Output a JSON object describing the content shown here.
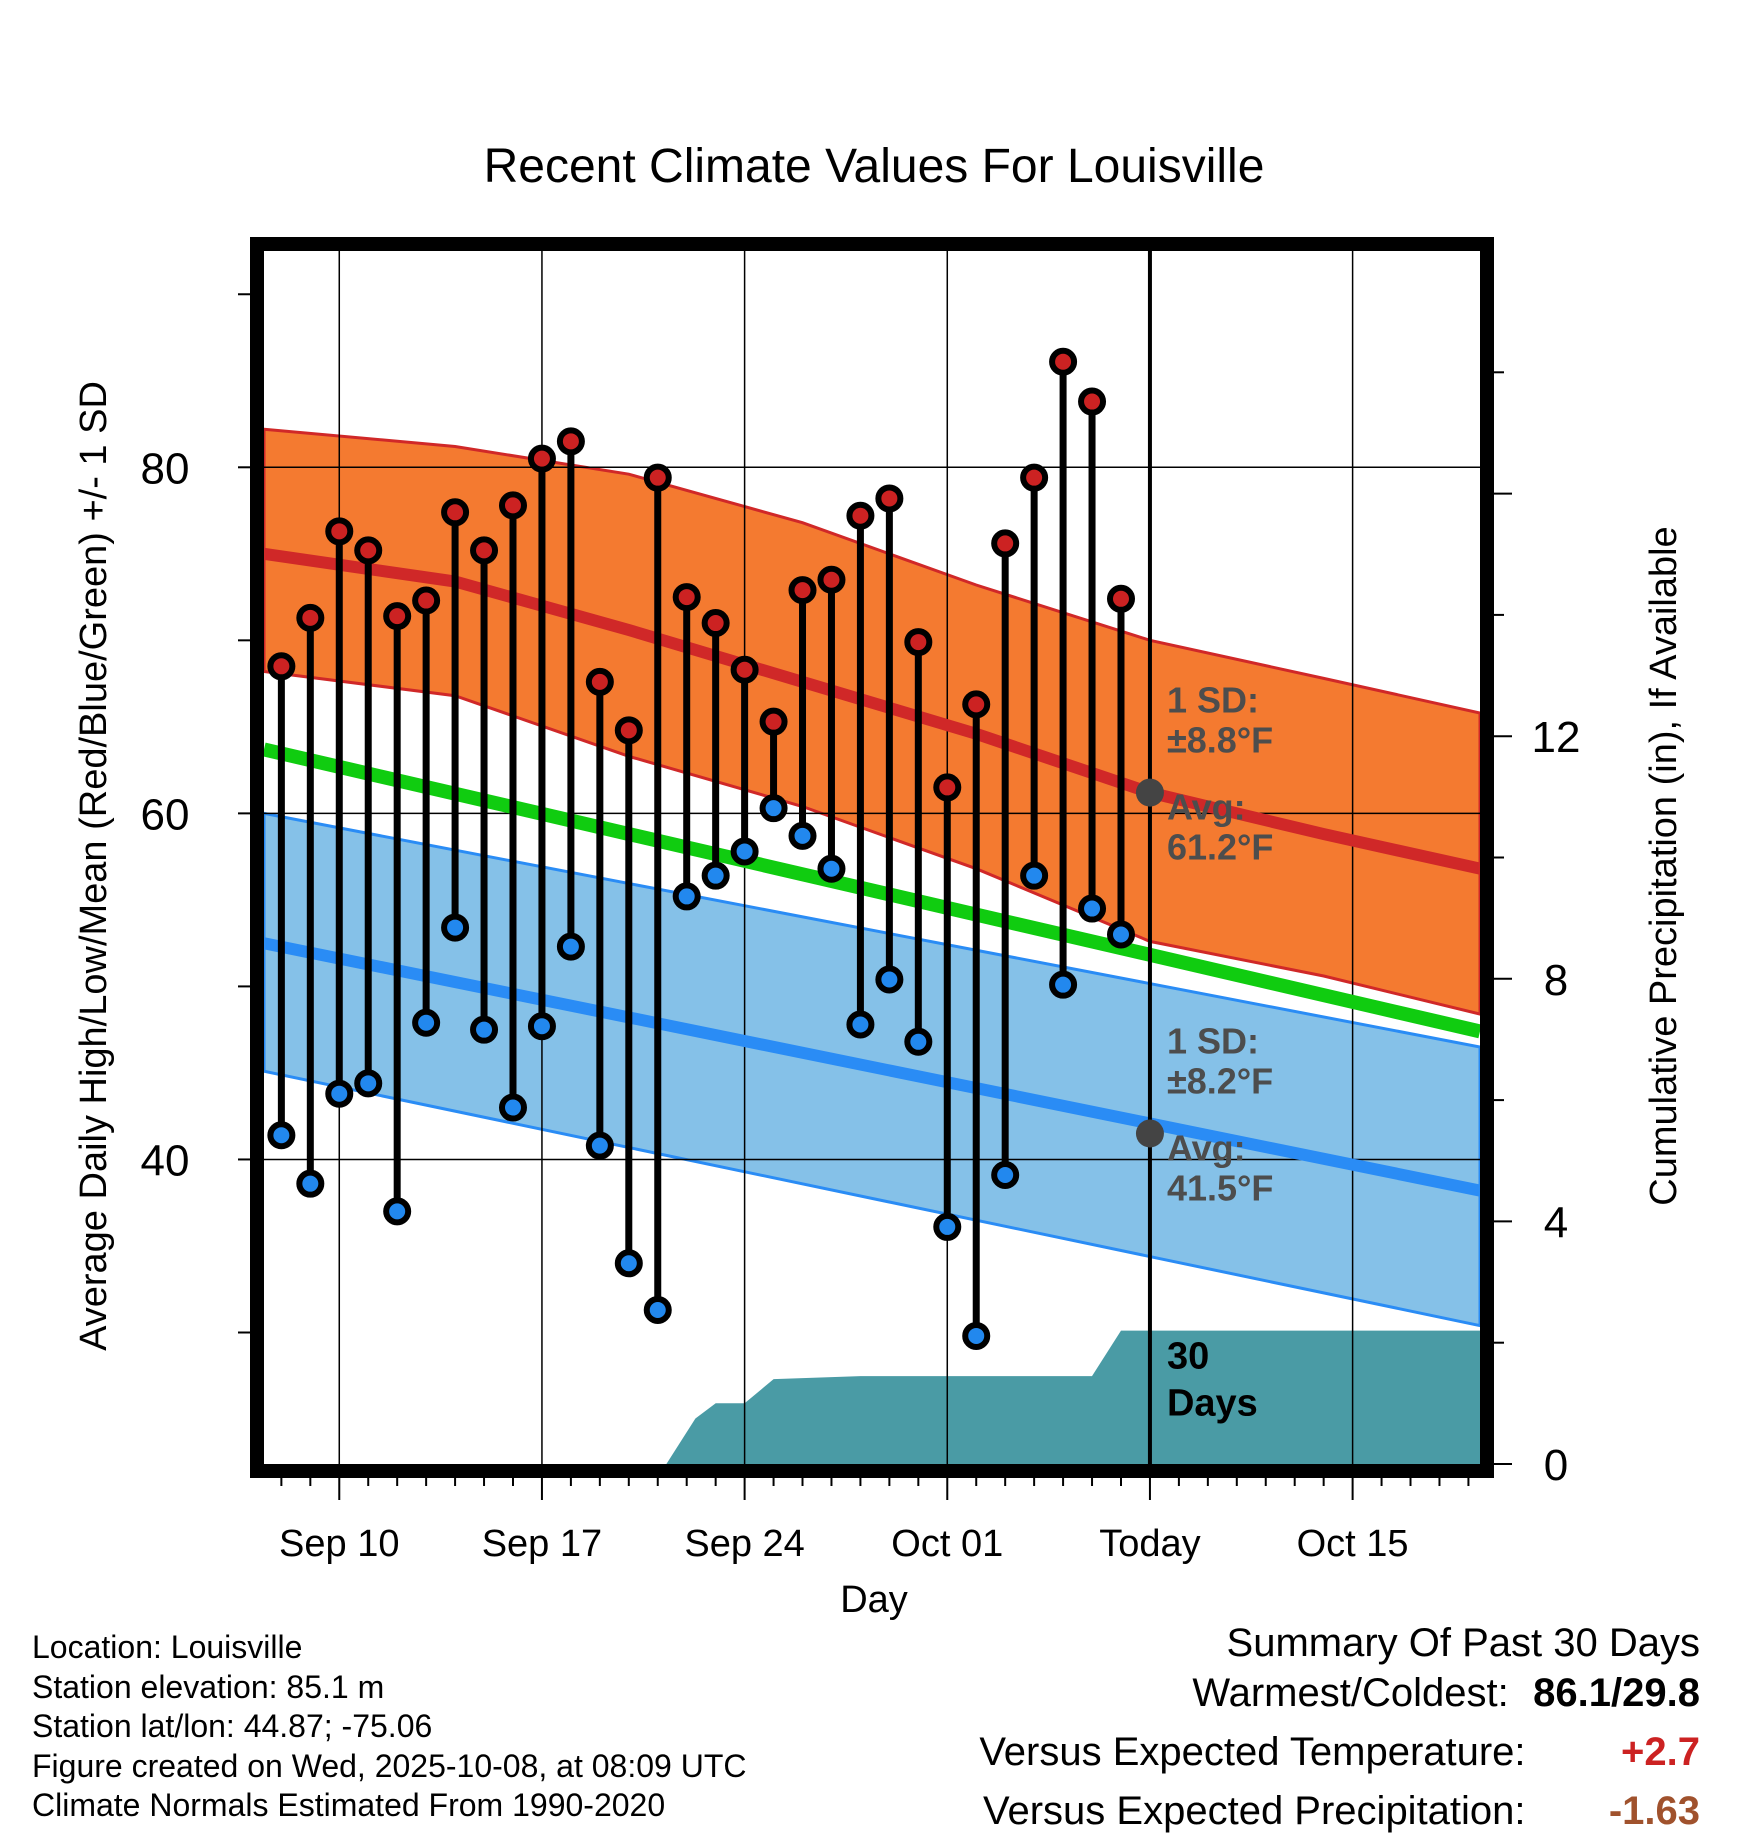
{
  "chart_data": {
    "type": "line",
    "title": "Recent Climate Values For Louisville",
    "xlabel": "Day",
    "ylabel": "Average Daily High/Low/Mean (Red/Blue/Green) +/- 1 SD",
    "y2label": "Cumulative Precipitation (in), If Available",
    "x_range": [
      -2.6,
      39.4
    ],
    "ylim": [
      22.4,
      92.5
    ],
    "y2lim": [
      0,
      20
    ],
    "yticks": [
      {
        "value": 40,
        "label": "40"
      },
      {
        "value": 60,
        "label": "60"
      },
      {
        "value": 80,
        "label": "80"
      }
    ],
    "y2ticks": [
      {
        "value": 0,
        "label": "0"
      },
      {
        "value": 4,
        "label": "4"
      },
      {
        "value": 8,
        "label": "8"
      },
      {
        "value": 12,
        "label": "12"
      }
    ],
    "xticks": [
      {
        "day": 0,
        "label": "Sep 10"
      },
      {
        "day": 7,
        "label": "Sep 17"
      },
      {
        "day": 14,
        "label": "Sep 24"
      },
      {
        "day": 21,
        "label": "Oct 01"
      },
      {
        "day": 28,
        "label": "Today"
      },
      {
        "day": 35,
        "label": "Oct 15"
      }
    ],
    "today_day": 28,
    "high_band": {
      "x": [
        -2.6,
        4,
        10,
        16,
        22,
        28,
        34,
        39.4
      ],
      "upper": [
        82.2,
        81.2,
        79.6,
        76.8,
        73.2,
        70.0,
        67.8,
        65.8
      ],
      "lower": [
        68.2,
        66.8,
        63.3,
        60.4,
        56.8,
        52.6,
        50.6,
        48.4
      ]
    },
    "high_mean": {
      "x": [
        -2.6,
        4,
        10,
        16,
        22,
        28,
        34,
        39.4
      ],
      "values": [
        75.0,
        73.4,
        70.6,
        67.6,
        64.6,
        61.2,
        58.8,
        56.8
      ]
    },
    "mean_line": {
      "x": [
        -2.6,
        39.4
      ],
      "values": [
        63.7,
        47.4
      ]
    },
    "low_band": {
      "x": [
        -2.6,
        39.4
      ],
      "upper": [
        60.0,
        46.5
      ],
      "lower": [
        45.1,
        30.4
      ]
    },
    "low_mean": {
      "x": [
        -2.6,
        39.4
      ],
      "values": [
        52.5,
        38.2
      ]
    },
    "series": [
      {
        "name": "Daily High",
        "color": "#cc2222",
        "x": [
          -2,
          -1,
          0,
          1,
          2,
          3,
          4,
          5,
          6,
          7,
          8,
          9,
          10,
          11,
          12,
          13,
          14,
          15,
          16,
          17,
          18,
          19,
          20,
          21,
          22,
          23,
          24,
          25,
          26,
          27
        ],
        "values": [
          68.5,
          71.3,
          76.3,
          75.2,
          71.4,
          72.3,
          77.4,
          75.2,
          77.8,
          80.5,
          81.5,
          67.6,
          64.8,
          79.4,
          72.5,
          71.0,
          68.3,
          65.3,
          72.9,
          73.5,
          77.2,
          78.2,
          69.9,
          61.5,
          66.3,
          75.6,
          79.4,
          86.1,
          83.8,
          72.4
        ]
      },
      {
        "name": "Daily Low",
        "color": "#2288ee",
        "x": [
          -2,
          -1,
          0,
          1,
          2,
          3,
          4,
          5,
          6,
          7,
          8,
          9,
          10,
          11,
          12,
          13,
          14,
          15,
          16,
          17,
          18,
          19,
          20,
          21,
          22,
          23,
          24,
          25,
          26,
          27
        ],
        "values": [
          41.4,
          38.6,
          43.8,
          44.4,
          37.0,
          47.9,
          53.4,
          47.5,
          43.0,
          47.7,
          52.3,
          40.8,
          34.0,
          31.3,
          55.2,
          56.4,
          57.8,
          60.3,
          58.7,
          56.8,
          47.8,
          50.4,
          46.8,
          36.1,
          29.8,
          39.1,
          56.4,
          50.1,
          54.5,
          53.0
        ]
      }
    ],
    "precip": {
      "x": [
        -2.6,
        9.5,
        11.3,
        12.3,
        13.0,
        14.0,
        15.0,
        18.0,
        21.0,
        25.0,
        26.0,
        27.0,
        28.0,
        39.4
      ],
      "values": [
        0,
        0,
        0,
        0.75,
        1.0,
        1.0,
        1.4,
        1.45,
        1.45,
        1.45,
        1.45,
        2.2,
        2.2,
        2.2
      ]
    },
    "annotations": {
      "high_sd_label": "1 SD:",
      "high_sd_value": "±8.8°F",
      "high_avg_label": "Avg:",
      "high_avg_value": "61.2°F",
      "high_avg": 61.2,
      "low_sd_label": "1 SD:",
      "low_sd_value": "±8.2°F",
      "low_avg_label": "Avg:",
      "low_avg_value": "41.5°F",
      "low_avg": 41.5,
      "precip_label_1": "30",
      "precip_label_2": "Days"
    },
    "colors": {
      "high_band": "#f47a30",
      "high_line": "#d02828",
      "mean": "#10cc10",
      "low_band": "#85c1e8",
      "low_line": "#2a8cf5",
      "precip": "#4a9ba5"
    }
  },
  "info": {
    "location": "Location: Louisville",
    "elevation": "Station elevation: 85.1 m",
    "latlon": "Station lat/lon: 44.87; -75.06",
    "created": "Figure created on Wed, 2025-10-08, at 08:09 UTC",
    "normals": "Climate Normals Estimated From 1990-2020"
  },
  "summary": {
    "title": "Summary Of Past 30 Days",
    "warm_cold_label": "Warmest/Coldest:",
    "warm_cold_value": "86.1/29.8",
    "temp_label": "Versus Expected Temperature:",
    "temp_value": "+2.7",
    "temp_color": "#cc2222",
    "precip_label": "Versus Expected Precipitation:",
    "precip_value": "-1.63",
    "precip_color": "#a0522d"
  }
}
